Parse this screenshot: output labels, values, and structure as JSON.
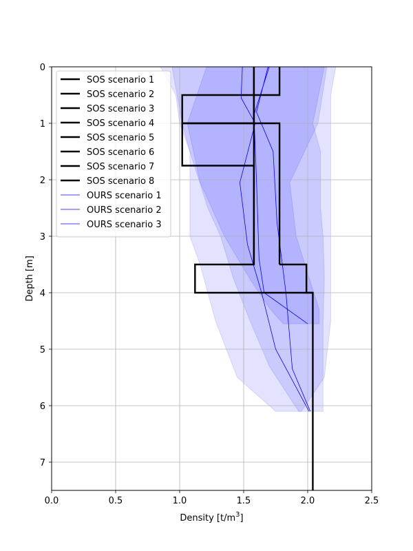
{
  "chart_data": {
    "type": "line",
    "xlabel": "Density [t/m³]",
    "ylabel": "Depth [m]",
    "xlim": [
      0.0,
      2.5
    ],
    "ylim": [
      7.5,
      0
    ],
    "y_inverted": true,
    "grid": true,
    "legend_position": "upper left",
    "xticks": [
      "0.0",
      "0.5",
      "1.0",
      "1.5",
      "2.0",
      "2.5"
    ],
    "xtick_values": [
      0.0,
      0.5,
      1.0,
      1.5,
      2.0,
      2.5
    ],
    "yticks": [
      "0",
      "1",
      "2",
      "3",
      "4",
      "5",
      "6",
      "7"
    ],
    "ytick_values": [
      0,
      1,
      2,
      3,
      4,
      5,
      6,
      7
    ],
    "colors": {
      "sos": "#000000",
      "ours": "#0000ff",
      "band": "#0000ff"
    },
    "sos_series": [
      {
        "name": "SOS scenario 1",
        "x": [
          1.58,
          1.58,
          1.58,
          1.58,
          1.58,
          1.12,
          1.12,
          2.04,
          2.04
        ],
        "y": [
          0,
          1.0,
          1.0,
          3.5,
          3.5,
          3.5,
          4.0,
          4.0,
          7.5
        ]
      },
      {
        "name": "SOS scenario 2",
        "x": [
          1.78,
          1.78,
          1.02,
          1.02,
          1.78,
          1.78
        ],
        "y": [
          0,
          0.5,
          0.5,
          1.0,
          1.0,
          3.5
        ]
      },
      {
        "name": "SOS scenario 3",
        "x": [
          1.58,
          1.58,
          1.02,
          1.02,
          1.58,
          1.58
        ],
        "y": [
          0,
          1.0,
          1.0,
          1.75,
          1.75,
          3.5
        ]
      },
      {
        "name": "SOS scenario 4",
        "x": [
          1.78,
          1.99,
          1.99,
          2.04
        ],
        "y": [
          3.5,
          3.5,
          4.0,
          4.0
        ]
      },
      {
        "name": "SOS scenario 5",
        "x": [],
        "y": []
      },
      {
        "name": "SOS scenario 6",
        "x": [],
        "y": []
      },
      {
        "name": "SOS scenario 7",
        "x": [],
        "y": []
      },
      {
        "name": "SOS scenario 8",
        "x": [],
        "y": []
      }
    ],
    "ours_series": [
      {
        "name": "OURS scenario 1",
        "x": [
          1.49,
          1.48,
          1.59,
          1.47,
          1.53,
          1.64,
          1.75,
          2.01
        ],
        "y": [
          0,
          0.55,
          1.0,
          2.05,
          3.15,
          4.0,
          5.0,
          6.1
        ]
      },
      {
        "name": "OURS scenario 2",
        "x": [
          1.69,
          1.6,
          1.73,
          1.76,
          1.83,
          1.88,
          2.02
        ],
        "y": [
          0,
          0.8,
          1.5,
          2.75,
          4.0,
          5.35,
          6.1
        ]
      },
      {
        "name": "OURS scenario 3",
        "x": [
          1.7,
          1.58,
          1.6,
          1.62,
          1.66,
          2.0
        ],
        "y": [
          0,
          0.85,
          2.0,
          3.4,
          4.0,
          4.55
        ]
      }
    ],
    "bands": [
      {
        "x_lo": [
          0.85,
          0.97,
          1.0,
          1.08,
          1.08,
          1.08,
          1.16,
          1.28,
          1.45,
          1.75,
          1.95
        ],
        "x_hi": [
          2.22,
          2.18,
          2.18,
          2.18,
          2.18,
          2.18,
          2.18,
          2.18,
          2.13,
          1.95,
          1.95
        ],
        "y": [
          0,
          0.5,
          1.0,
          1.5,
          2.0,
          3.0,
          3.5,
          4.5,
          5.5,
          6.1,
          6.1
        ]
      },
      {
        "x_lo": [
          0.94,
          1.02,
          1.08,
          1.22,
          1.32,
          1.42,
          1.55,
          1.7,
          1.93
        ],
        "x_hi": [
          2.13,
          2.04,
          2.1,
          2.1,
          2.12,
          2.13,
          2.12,
          2.12,
          2.12
        ],
        "y": [
          0,
          1.0,
          1.5,
          2.5,
          3.0,
          3.75,
          4.5,
          5.3,
          6.1
        ]
      },
      {
        "x_lo": [
          1.21,
          1.06,
          1.16,
          1.35,
          1.56,
          1.71,
          1.81
        ],
        "x_hi": [
          2.15,
          2.08,
          1.86,
          1.91,
          2.02,
          2.09,
          2.09
        ],
        "y": [
          0,
          1.0,
          2.05,
          3.0,
          3.8,
          4.3,
          4.55
        ]
      }
    ]
  }
}
